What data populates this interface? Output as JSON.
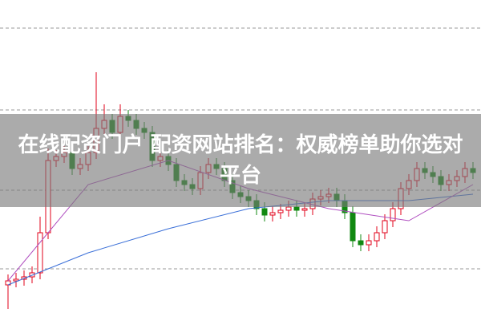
{
  "chart_data": {
    "type": "candlestick",
    "title": "在线配资门户 配资网站排名：权威榜单助你选对平台",
    "ylim": [
      0,
      400
    ],
    "up_color": "#e2001a",
    "down_color": "#118811",
    "open": [
      45,
      50,
      52,
      55,
      60,
      110,
      200,
      205,
      210,
      190,
      195,
      210,
      240,
      250,
      235,
      255,
      250,
      240,
      235,
      200,
      205,
      195,
      175,
      170,
      165,
      185,
      195,
      190,
      175,
      160,
      155,
      150,
      140,
      132,
      135,
      138,
      142,
      138,
      140,
      152,
      155,
      158,
      150,
      135,
      100,
      95,
      100,
      110,
      125,
      140,
      165,
      175,
      190,
      185,
      180,
      170,
      175,
      180,
      190
    ],
    "high": [
      58,
      60,
      63,
      68,
      130,
      215,
      213,
      218,
      218,
      203,
      218,
      310,
      270,
      258,
      270,
      263,
      258,
      248,
      243,
      213,
      213,
      203,
      183,
      178,
      193,
      203,
      203,
      198,
      183,
      168,
      163,
      158,
      148,
      143,
      146,
      150,
      150,
      148,
      160,
      163,
      166,
      166,
      158,
      143,
      108,
      108,
      118,
      133,
      148,
      173,
      183,
      198,
      198,
      193,
      188,
      183,
      188,
      198,
      198
    ],
    "low": [
      15,
      42,
      44,
      47,
      52,
      102,
      192,
      197,
      182,
      182,
      187,
      202,
      232,
      227,
      227,
      242,
      232,
      227,
      192,
      192,
      187,
      167,
      162,
      157,
      157,
      177,
      182,
      167,
      152,
      147,
      142,
      132,
      124,
      124,
      127,
      130,
      130,
      130,
      132,
      144,
      147,
      142,
      127,
      92,
      87,
      87,
      92,
      102,
      117,
      132,
      157,
      167,
      177,
      172,
      162,
      162,
      167,
      172,
      177
    ],
    "close": [
      50,
      52,
      55,
      60,
      110,
      200,
      205,
      210,
      190,
      195,
      210,
      240,
      250,
      235,
      255,
      250,
      240,
      235,
      200,
      205,
      195,
      175,
      170,
      165,
      185,
      195,
      190,
      175,
      160,
      155,
      150,
      140,
      132,
      135,
      138,
      142,
      138,
      140,
      152,
      155,
      158,
      150,
      135,
      100,
      95,
      100,
      110,
      125,
      140,
      165,
      175,
      190,
      185,
      180,
      170,
      175,
      180,
      190,
      185
    ],
    "ma_x": [
      0,
      10,
      20,
      30,
      40,
      50,
      58
    ],
    "ma": [
      {
        "color": "#3a6fd8",
        "values": [
          45,
          85,
          115,
          140,
          150,
          150,
          158
        ]
      },
      {
        "color": "#b04fc0",
        "values": [
          50,
          170,
          200,
          165,
          140,
          125,
          170
        ]
      }
    ]
  }
}
